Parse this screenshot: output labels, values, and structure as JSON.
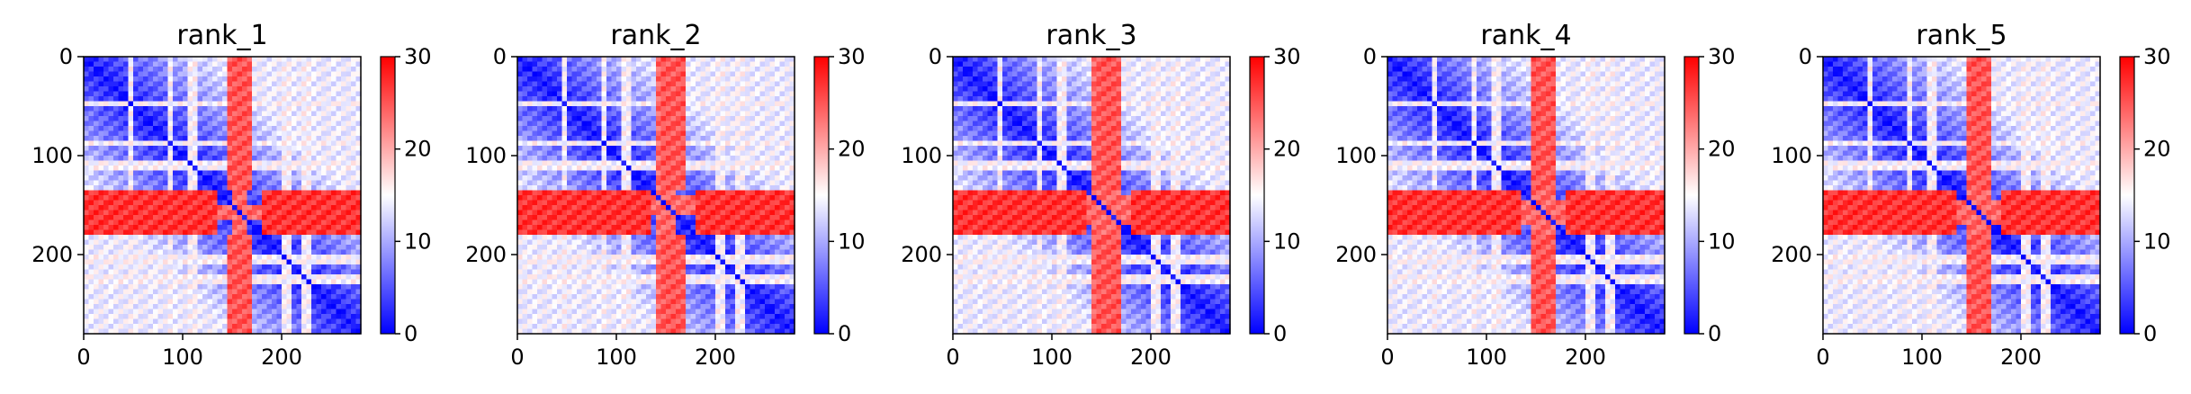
{
  "chart_data": [
    {
      "type": "heatmap",
      "title": "rank_1",
      "xlabel": "",
      "ylabel": "",
      "xlim": [
        0,
        280
      ],
      "ylim": [
        280,
        0
      ],
      "xticks": [
        0,
        100,
        200
      ],
      "yticks": [
        0,
        100,
        200
      ],
      "colorbar": {
        "range": [
          0,
          30
        ],
        "ticks": [
          0,
          10,
          20,
          30
        ]
      },
      "colormap": [
        "#0000ff",
        "#ffffff",
        "#ff0000"
      ],
      "high_bands": [
        [
          135,
          182
        ],
        [
          143,
          165
        ]
      ],
      "mid_bands": [
        [
          45,
          52
        ],
        [
          85,
          92
        ],
        [
          105,
          115
        ],
        [
          200,
          208
        ],
        [
          220,
          228
        ]
      ],
      "high_cross_band": [
        148,
        165
      ]
    },
    {
      "type": "heatmap",
      "title": "rank_2",
      "xlabel": "",
      "ylabel": "",
      "xlim": [
        0,
        280
      ],
      "ylim": [
        280,
        0
      ],
      "xticks": [
        0,
        100,
        200
      ],
      "yticks": [
        0,
        100,
        200
      ],
      "colorbar": {
        "range": [
          0,
          30
        ],
        "ticks": [
          0,
          10,
          20,
          30
        ]
      },
      "colormap": [
        "#0000ff",
        "#ffffff",
        "#ff0000"
      ],
      "high_bands": [
        [
          135,
          182
        ]
      ],
      "mid_bands": [
        [
          45,
          52
        ],
        [
          85,
          92
        ],
        [
          105,
          115
        ],
        [
          200,
          208
        ],
        [
          220,
          228
        ]
      ],
      "high_cross_band": [
        140,
        162
      ]
    },
    {
      "type": "heatmap",
      "title": "rank_3",
      "xlabel": "",
      "ylabel": "",
      "xlim": [
        0,
        280
      ],
      "ylim": [
        280,
        0
      ],
      "xticks": [
        0,
        100,
        200
      ],
      "yticks": [
        0,
        100,
        200
      ],
      "colorbar": {
        "range": [
          0,
          30
        ],
        "ticks": [
          0,
          10,
          20,
          30
        ]
      },
      "colormap": [
        "#0000ff",
        "#ffffff",
        "#ff0000"
      ],
      "high_bands": [
        [
          135,
          182
        ]
      ],
      "mid_bands": [
        [
          45,
          52
        ],
        [
          85,
          92
        ],
        [
          105,
          115
        ],
        [
          200,
          208
        ],
        [
          220,
          228
        ]
      ],
      "high_cross_band": [
        142,
        168
      ]
    },
    {
      "type": "heatmap",
      "title": "rank_4",
      "xlabel": "",
      "ylabel": "",
      "xlim": [
        0,
        280
      ],
      "ylim": [
        280,
        0
      ],
      "xticks": [
        0,
        100,
        200
      ],
      "yticks": [
        0,
        100,
        200
      ],
      "colorbar": {
        "range": [
          0,
          30
        ],
        "ticks": [
          0,
          10,
          20,
          30
        ]
      },
      "colormap": [
        "#0000ff",
        "#ffffff",
        "#ff0000"
      ],
      "high_bands": [
        [
          135,
          182
        ]
      ],
      "mid_bands": [
        [
          45,
          52
        ],
        [
          85,
          92
        ],
        [
          105,
          115
        ],
        [
          200,
          208
        ],
        [
          220,
          228
        ]
      ],
      "high_cross_band": [
        145,
        168
      ]
    },
    {
      "type": "heatmap",
      "title": "rank_5",
      "xlabel": "",
      "ylabel": "",
      "xlim": [
        0,
        280
      ],
      "ylim": [
        280,
        0
      ],
      "xticks": [
        0,
        100,
        200
      ],
      "yticks": [
        0,
        100,
        200
      ],
      "colorbar": {
        "range": [
          0,
          30
        ],
        "ticks": [
          0,
          10,
          20,
          30
        ]
      },
      "colormap": [
        "#0000ff",
        "#ffffff",
        "#ff0000"
      ],
      "high_bands": [
        [
          135,
          182
        ]
      ],
      "mid_bands": [
        [
          45,
          52
        ],
        [
          85,
          92
        ],
        [
          105,
          115
        ],
        [
          200,
          208
        ],
        [
          220,
          228
        ]
      ],
      "high_cross_band": [
        145,
        170
      ]
    }
  ]
}
